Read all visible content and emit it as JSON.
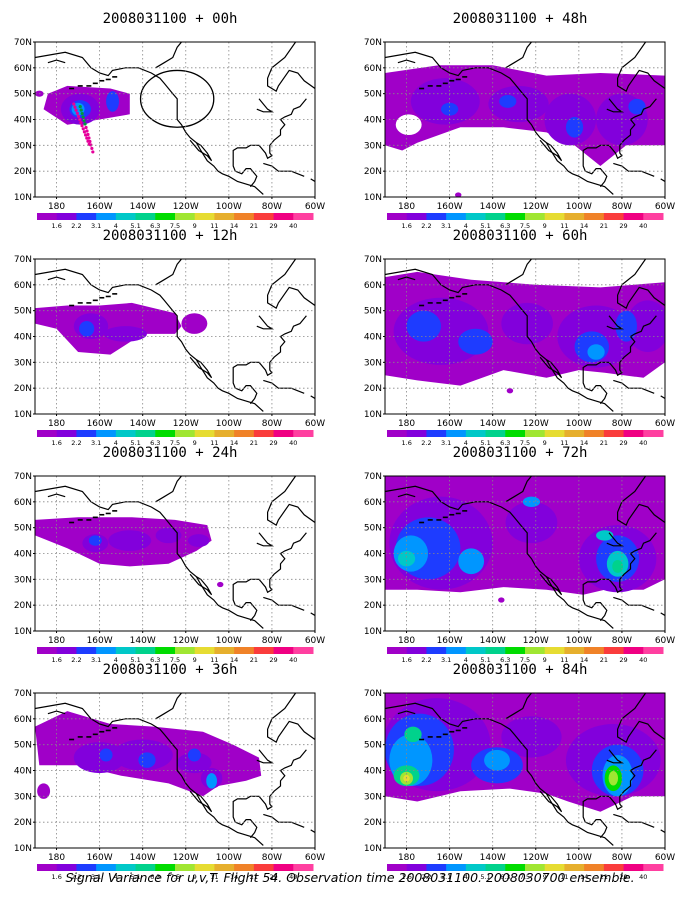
{
  "panels": [
    {
      "title": "2008031100 + 00h",
      "lead_hours": 0
    },
    {
      "title": "2008031100 + 12h",
      "lead_hours": 12
    },
    {
      "title": "2008031100 + 24h",
      "lead_hours": 24
    },
    {
      "title": "2008031100 + 36h",
      "lead_hours": 36
    },
    {
      "title": "2008031100 + 48h",
      "lead_hours": 48
    },
    {
      "title": "2008031100 + 60h",
      "lead_hours": 60
    },
    {
      "title": "2008031100 + 72h",
      "lead_hours": 72
    },
    {
      "title": "2008031100 + 84h",
      "lead_hours": 84
    }
  ],
  "lat_labels": [
    "70N",
    "60N",
    "50N",
    "40N",
    "30N",
    "20N",
    "10N"
  ],
  "lon_labels": [
    "180",
    "160W",
    "140W",
    "120W",
    "100W",
    "80W",
    "60W"
  ],
  "colorbar": {
    "labels": [
      "1.6",
      "2.2",
      "3.1",
      "4",
      "5.1",
      "6.3",
      "7.5",
      "9",
      "11",
      "14",
      "21",
      "29",
      "40"
    ],
    "colors": [
      "#a000c8",
      "#8200dc",
      "#1e3cff",
      "#0096ff",
      "#00c8c8",
      "#00d28c",
      "#00dc00",
      "#a0e632",
      "#e6dc32",
      "#e6af2d",
      "#f08228",
      "#fa3c3c",
      "#f00082",
      "#ff3fa0"
    ]
  },
  "caption": "Signal Variance for u,v,T. Flight 54. Observation time 2008031100. 2008030700 ensemble."
}
